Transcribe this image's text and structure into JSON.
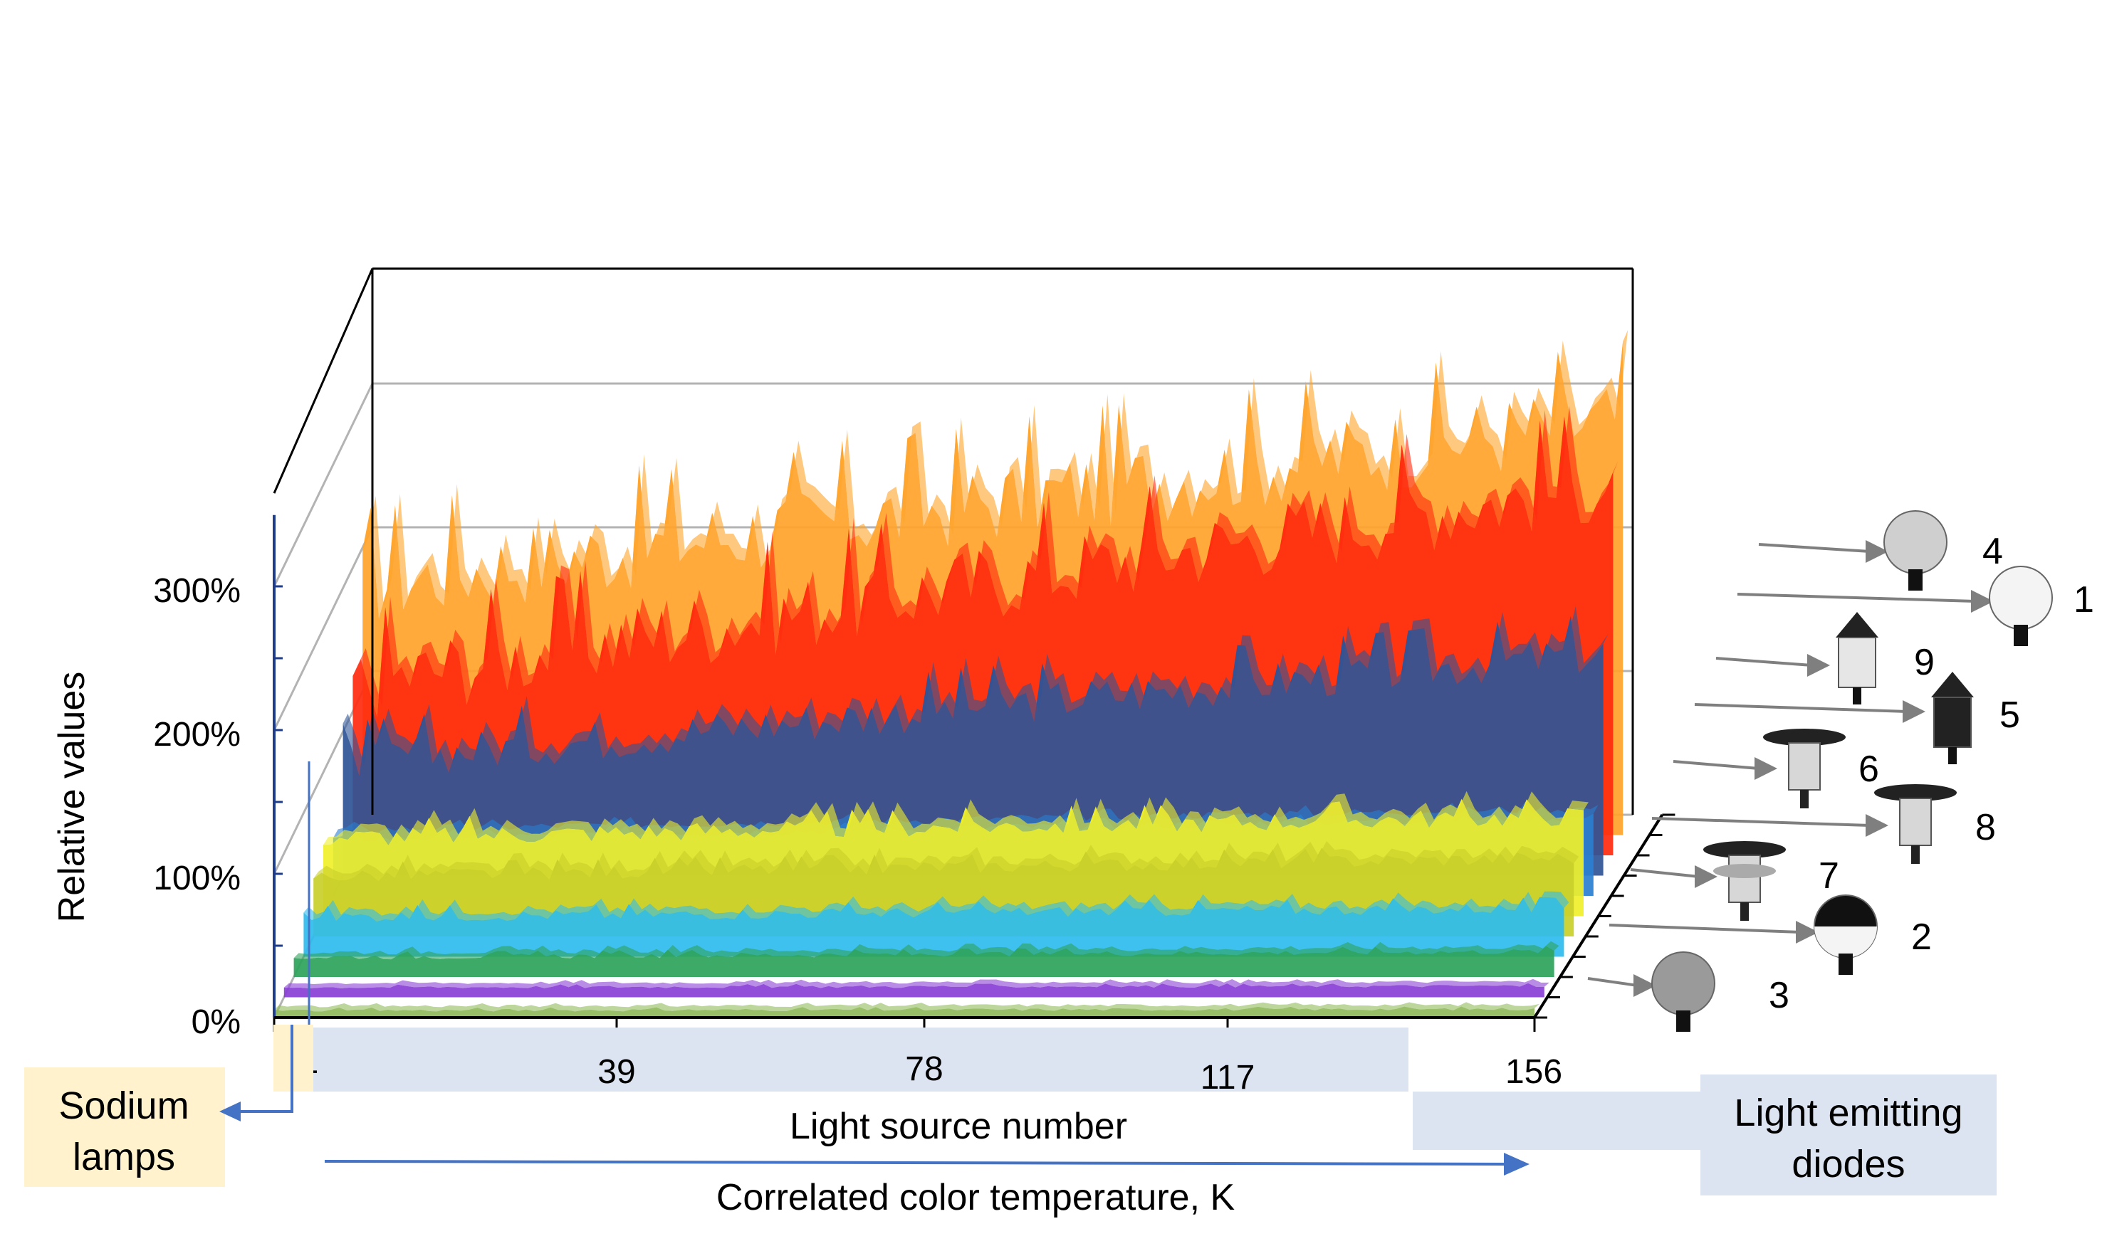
{
  "chart_data": {
    "type": "area",
    "title": "",
    "xlabel": "Light source number",
    "xlabel_secondary": "Correlated color temperature, K",
    "ylabel": "Relative values",
    "x_ticks": [
      "1",
      "39",
      "78",
      "117",
      "156"
    ],
    "y_ticks": [
      "0%",
      "100%",
      "200%",
      "300%"
    ],
    "xlim": [
      1,
      156
    ],
    "ylim": [
      0,
      300
    ],
    "grid": true,
    "series": [
      {
        "name": "3",
        "color": "#8fba5a",
        "start": 5,
        "end": 6,
        "noise": 1
      },
      {
        "name": "2",
        "color": "#8a3fd6",
        "start": 7,
        "end": 8,
        "noise": 1
      },
      {
        "name": "7",
        "color": "#2ea35a",
        "start": 14,
        "end": 18,
        "noise": 2
      },
      {
        "name": "8",
        "color": "#2ebcee",
        "start": 28,
        "end": 34,
        "noise": 4
      },
      {
        "name": "6",
        "color": "#c9cf2a",
        "start": 42,
        "end": 55,
        "noise": 5
      },
      {
        "name": "5",
        "color": "#f0f02a",
        "start": 55,
        "end": 70,
        "noise": 7
      },
      {
        "name": "9",
        "color": "#2a7fd0",
        "start": 40,
        "end": 55,
        "noise": 3
      },
      {
        "name": "1",
        "color": "#2f5597",
        "start": 80,
        "end": 155,
        "noise": 15
      },
      {
        "name": "4",
        "color": "#ff2a0e",
        "start": 120,
        "end": 260,
        "noise": 28
      },
      {
        "name": "",
        "color": "#ffa32a",
        "start": 175,
        "end": 290,
        "noise": 30
      }
    ],
    "legend_items": [
      "4",
      "1",
      "9",
      "5",
      "6",
      "8",
      "7",
      "2",
      "3"
    ],
    "annotations": {
      "sodium": "Sodium\nlamps",
      "sodium_line1": "Sodium",
      "sodium_line2": "lamps",
      "led_line1": "Light emitting",
      "led_line2": "diodes"
    }
  }
}
